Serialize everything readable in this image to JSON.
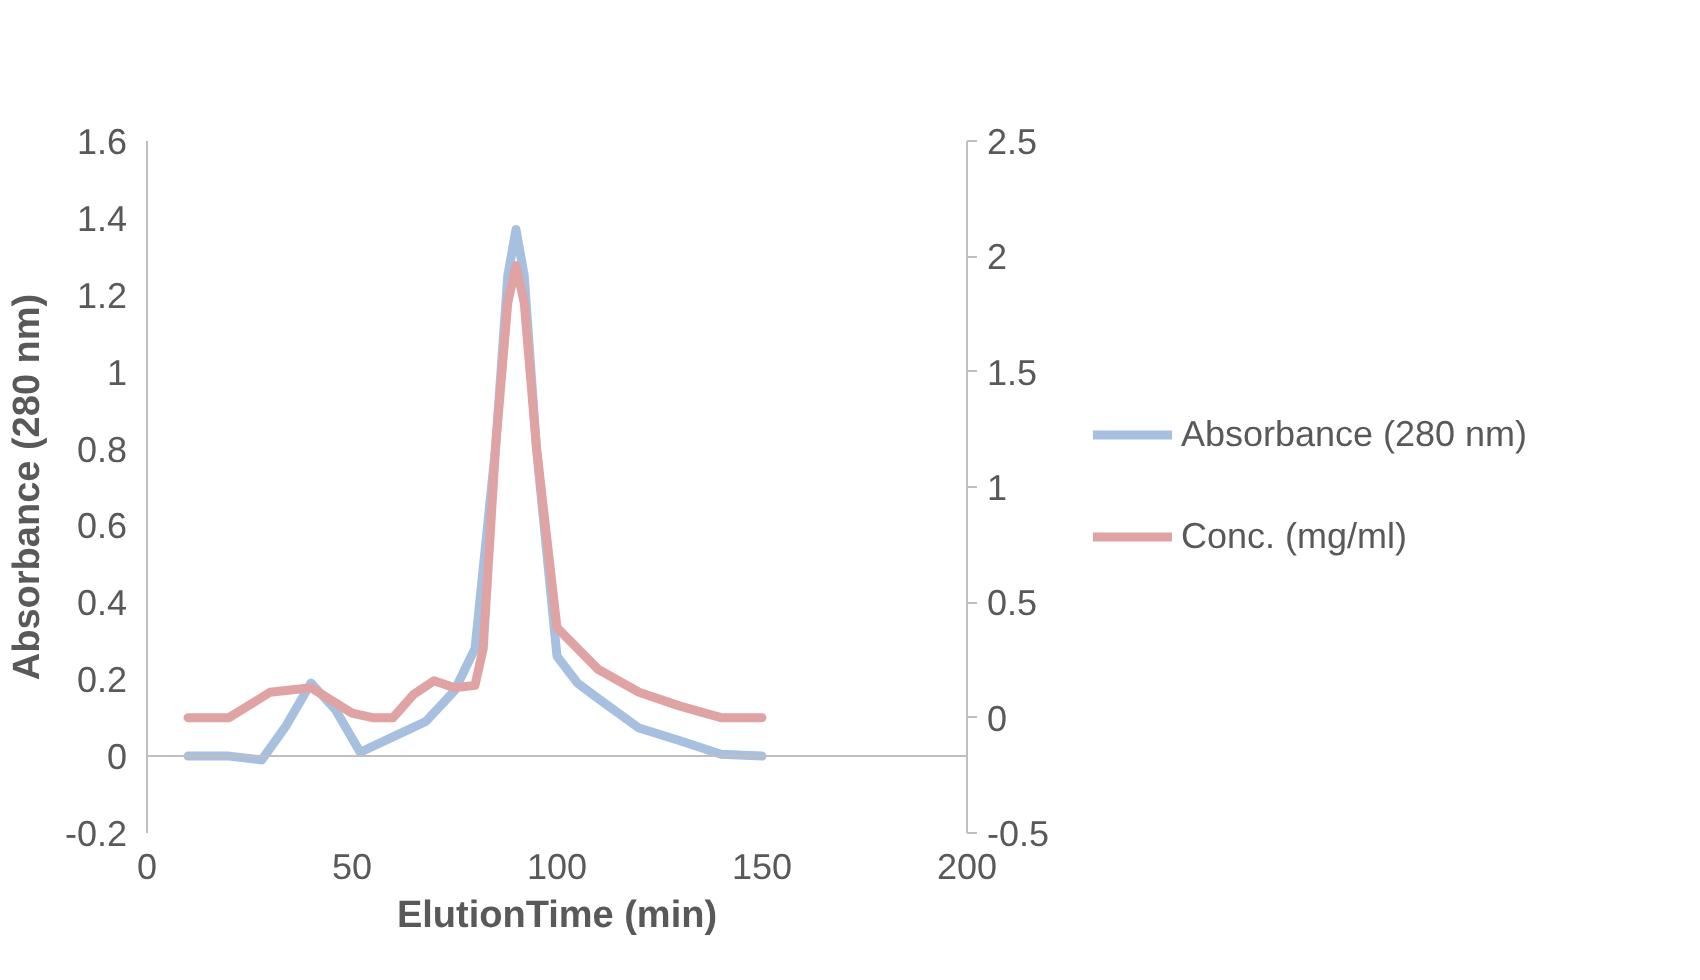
{
  "chart_data": {
    "type": "line",
    "xlabel": "ElutionTime (min)",
    "ylabel": "Absorbance (280 nm)",
    "xlim": [
      0,
      200
    ],
    "xticks": [
      0,
      50,
      100,
      150,
      200
    ],
    "ylim": [
      -0.2,
      1.6
    ],
    "yticks": [
      -0.2,
      0,
      0.2,
      0.4,
      0.6,
      0.8,
      1,
      1.2,
      1.4,
      1.6
    ],
    "y2lim": [
      -0.5,
      2.5
    ],
    "y2ticks": [
      -0.5,
      0,
      0.5,
      1,
      1.5,
      2,
      2.5
    ],
    "grid": false,
    "legend": "right",
    "marker": "none",
    "line_style": "solid",
    "series": [
      {
        "name": "Absorbance (280 nm)",
        "color": "#a7c0e0",
        "x": [
          10,
          20,
          28,
          34,
          40,
          46,
          52,
          60,
          68,
          75,
          80,
          85,
          88,
          90,
          92,
          95,
          100,
          105,
          110,
          120,
          130,
          140,
          150
        ],
        "values": [
          0,
          0,
          -0.01,
          0.08,
          0.19,
          0.12,
          0.01,
          0.05,
          0.09,
          0.17,
          0.28,
          0.8,
          1.25,
          1.37,
          1.25,
          0.8,
          0.26,
          0.19,
          0.15,
          0.073,
          0.04,
          0.005,
          0
        ]
      },
      {
        "name": "Conc. (mg/ml)",
        "color": "#e0a3a3",
        "axis": "y2",
        "x": [
          10,
          20,
          30,
          40,
          50,
          55,
          60,
          65,
          70,
          75,
          80,
          82,
          85,
          88,
          90,
          92,
          95,
          100,
          110,
          120,
          130,
          140,
          150
        ],
        "values": [
          0,
          0,
          0.11,
          0.13,
          0.02,
          0,
          0,
          0.1,
          0.16,
          0.13,
          0.14,
          0.3,
          1.17,
          1.8,
          1.96,
          1.8,
          1.17,
          0.39,
          0.21,
          0.11,
          0.05,
          0,
          0
        ]
      }
    ]
  }
}
